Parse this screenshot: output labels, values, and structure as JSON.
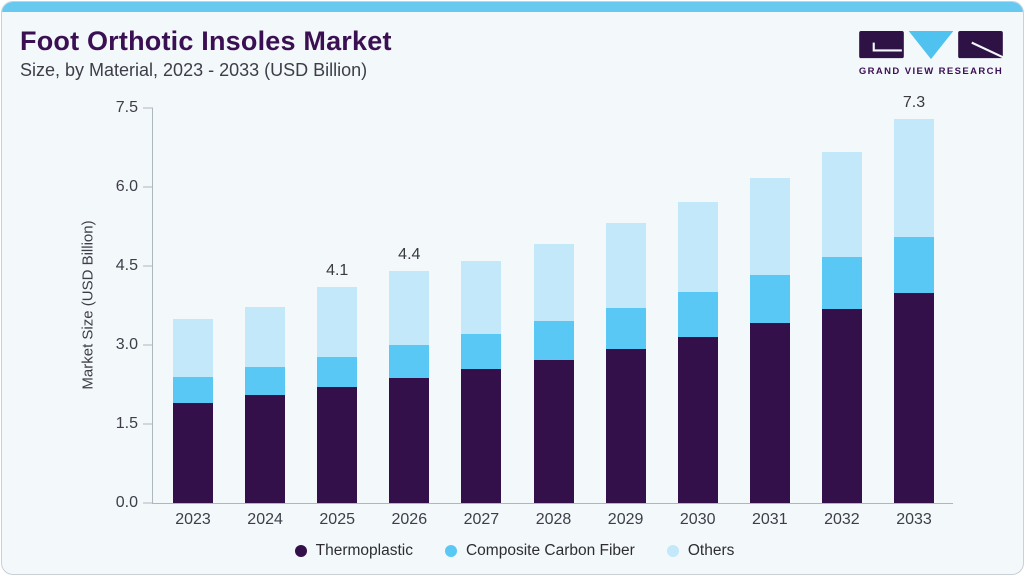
{
  "header": {
    "title": "Foot Orthotic Insoles Market",
    "subtitle": "Size, by Material, 2023 - 2033 (USD Billion)"
  },
  "logo": {
    "text": "GRAND VIEW RESEARCH",
    "mark_colors": {
      "blocks": "#2f1245",
      "triangle": "#4fc2ef"
    }
  },
  "chart_data": {
    "type": "bar",
    "stacked": true,
    "title": "Foot Orthotic Insoles Market Size, by Material, 2023 - 2033 (USD Billion)",
    "xlabel": "",
    "ylabel": "Market Size (USD Billion)",
    "categories": [
      "2023",
      "2024",
      "2025",
      "2026",
      "2027",
      "2028",
      "2029",
      "2030",
      "2031",
      "2032",
      "2033"
    ],
    "series": [
      {
        "name": "Thermoplastic",
        "color": "#331049",
        "values": [
          1.9,
          2.05,
          2.2,
          2.38,
          2.54,
          2.72,
          2.93,
          3.16,
          3.42,
          3.68,
          3.99
        ]
      },
      {
        "name": "Composite Carbon Fiber",
        "color": "#5ac8f5",
        "values": [
          0.5,
          0.53,
          0.58,
          0.62,
          0.67,
          0.74,
          0.78,
          0.84,
          0.91,
          0.99,
          1.06
        ]
      },
      {
        "name": "Others",
        "color": "#c2e8fa",
        "values": [
          1.1,
          1.15,
          1.32,
          1.4,
          1.39,
          1.46,
          1.61,
          1.71,
          1.84,
          2.0,
          2.25
        ]
      }
    ],
    "totals": [
      3.5,
      3.7,
      4.1,
      4.4,
      4.6,
      4.9,
      5.3,
      5.7,
      6.2,
      6.7,
      7.3
    ],
    "bar_labels": [
      "",
      "",
      "4.1",
      "4.4",
      "",
      "",
      "",
      "",
      "",
      "",
      "7.3"
    ],
    "yticks": [
      "0.0",
      "1.5",
      "3.0",
      "4.5",
      "6.0",
      "7.5"
    ],
    "ylim": [
      0,
      7.5
    ],
    "grid": false,
    "legend_position": "bottom"
  },
  "style": {
    "accent_bar": "#67c8f0",
    "card_background": "#f3f8fb",
    "title_color": "#3b1053",
    "axis_color": "#aeb7be"
  }
}
